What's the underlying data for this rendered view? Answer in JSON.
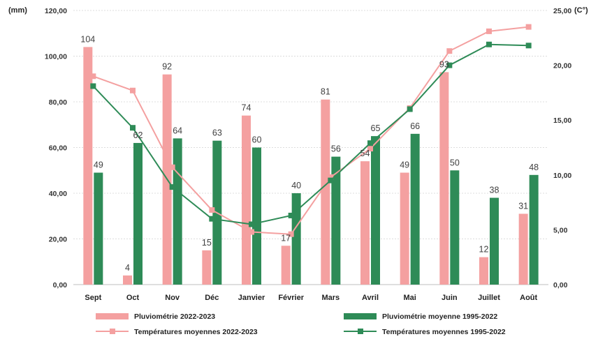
{
  "chart_data": {
    "type": "bar",
    "categories": [
      "Sept",
      "Oct",
      "Nov",
      "Déc",
      "Janvier",
      "Février",
      "Mars",
      "Avril",
      "Mai",
      "Juin",
      "Juillet",
      "Août"
    ],
    "y_left": {
      "unit": "(mm)",
      "ylim": [
        0,
        120
      ],
      "ticks": [
        "0,00",
        "20,00",
        "40,00",
        "60,00",
        "80,00",
        "100,00",
        "120,00"
      ]
    },
    "y_right": {
      "unit": "(C°)",
      "ylim": [
        0,
        25
      ],
      "ticks": [
        "0,00",
        "5,00",
        "10,00",
        "15,00",
        "20,00",
        "25,00"
      ]
    },
    "series": [
      {
        "name": "Pluviométrie 2022-2023",
        "kind": "bar",
        "axis": "left",
        "color": "#f4a0a0",
        "values": [
          104,
          4,
          92,
          15,
          74,
          17,
          81,
          54,
          49,
          93,
          12,
          31
        ],
        "labels": [
          "104",
          "4",
          "92",
          "15",
          "74",
          "17",
          "81",
          "54",
          "49",
          "93",
          "12",
          "31"
        ]
      },
      {
        "name": "Pluviométrie moyenne 1995-2022",
        "kind": "bar",
        "axis": "left",
        "color": "#2e8b57",
        "values": [
          49,
          62,
          64,
          63,
          60,
          40,
          56,
          65,
          66,
          50,
          38,
          48
        ],
        "labels": [
          "49",
          "62",
          "64",
          "63",
          "60",
          "40",
          "56",
          "65",
          "66",
          "50",
          "38",
          "48"
        ]
      },
      {
        "name": "Températures moyennes 2022-2023",
        "kind": "line",
        "axis": "right",
        "color": "#f4a0a0",
        "values": [
          19.0,
          17.7,
          10.7,
          6.8,
          4.8,
          4.6,
          9.8,
          12.4,
          16.1,
          21.3,
          23.1,
          23.5
        ]
      },
      {
        "name": "Températures moyennes 1995-2022",
        "kind": "line",
        "axis": "right",
        "color": "#2e8b57",
        "values": [
          18.1,
          14.3,
          8.9,
          6.0,
          5.5,
          6.3,
          9.5,
          12.9,
          16.0,
          20.0,
          21.9,
          21.8
        ]
      }
    ],
    "grid": true,
    "legend": "bottom"
  }
}
